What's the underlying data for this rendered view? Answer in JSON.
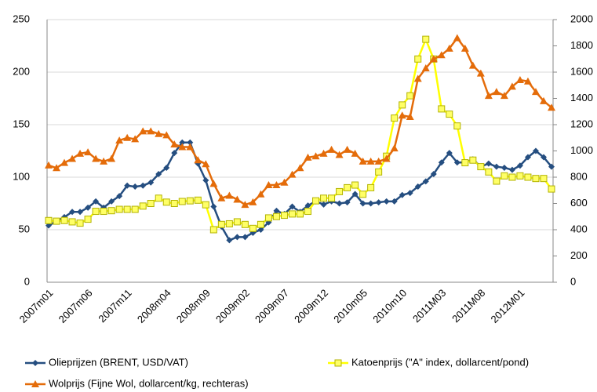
{
  "chart_data": {
    "type": "line",
    "categories": [
      "2007m01",
      null,
      null,
      null,
      null,
      "2007m06",
      null,
      null,
      null,
      null,
      "2007m11",
      null,
      null,
      null,
      null,
      "2008m04",
      null,
      null,
      null,
      null,
      "2008m09",
      null,
      null,
      null,
      null,
      "2009m02",
      null,
      null,
      null,
      null,
      "2009m07",
      null,
      null,
      null,
      null,
      "2009m12",
      null,
      null,
      null,
      null,
      "2010m05",
      null,
      null,
      null,
      null,
      "2010m10",
      null,
      null,
      null,
      null,
      "2011M03",
      null,
      null,
      null,
      null,
      "2011M08",
      null,
      null,
      null,
      null,
      "2012M01",
      null,
      null,
      null,
      null
    ],
    "series": [
      {
        "name": "Olieprijzen (BRENT, USD/VAT)",
        "color": "#254e80",
        "marker": "diamond",
        "axis": "y",
        "values": [
          54,
          58,
          62,
          67,
          67,
          71,
          77,
          71,
          77,
          82,
          92,
          91,
          92,
          95,
          103,
          109,
          123,
          133,
          133,
          113,
          97,
          72,
          53,
          40,
          43,
          43,
          47,
          50,
          57,
          68,
          65,
          72,
          67,
          73,
          77,
          74,
          77,
          75,
          76,
          84,
          75,
          75,
          76,
          77,
          77,
          83,
          85,
          91,
          96,
          103,
          114,
          123,
          114,
          114,
          117,
          110,
          113,
          110,
          109,
          107,
          111,
          119,
          125,
          119,
          110
        ]
      },
      {
        "name": "Katoenprijs (\"A\" index, dollarcent/pond)",
        "color": "#ffff00",
        "marker": "square",
        "axis": "y2",
        "values": [
          470,
          465,
          470,
          460,
          450,
          480,
          540,
          540,
          545,
          555,
          555,
          555,
          580,
          600,
          640,
          610,
          600,
          615,
          620,
          625,
          590,
          400,
          440,
          445,
          460,
          440,
          410,
          440,
          490,
          500,
          510,
          520,
          520,
          540,
          620,
          640,
          640,
          690,
          720,
          740,
          670,
          720,
          840,
          960,
          1250,
          1350,
          1420,
          1700,
          1850,
          1700,
          1320,
          1280,
          1190,
          910,
          930,
          880,
          840,
          770,
          810,
          800,
          810,
          800,
          790,
          790,
          710
        ]
      },
      {
        "name": "Wolprijs (Fijne Wol, dollarcent/kg, rechteras)",
        "color": "#e46c0a",
        "marker": "triangle",
        "axis": "y2",
        "values": [
          890,
          870,
          910,
          940,
          980,
          990,
          940,
          920,
          940,
          1080,
          1100,
          1090,
          1150,
          1150,
          1130,
          1120,
          1050,
          1030,
          1030,
          930,
          900,
          750,
          640,
          660,
          630,
          590,
          610,
          670,
          740,
          740,
          760,
          820,
          870,
          950,
          960,
          980,
          1010,
          970,
          1010,
          980,
          920,
          920,
          920,
          940,
          1020,
          1270,
          1260,
          1550,
          1630,
          1700,
          1730,
          1780,
          1860,
          1780,
          1650,
          1590,
          1420,
          1450,
          1420,
          1490,
          1540,
          1530,
          1450,
          1380,
          1330
        ]
      }
    ],
    "ylim": [
      0,
      250
    ],
    "yticks": [
      0,
      50,
      100,
      150,
      200,
      250
    ],
    "y2lim": [
      0,
      2000
    ],
    "y2ticks": [
      0,
      200,
      400,
      600,
      800,
      1000,
      1200,
      1400,
      1600,
      1800,
      2000
    ],
    "grid": true,
    "legend": "bottom"
  }
}
